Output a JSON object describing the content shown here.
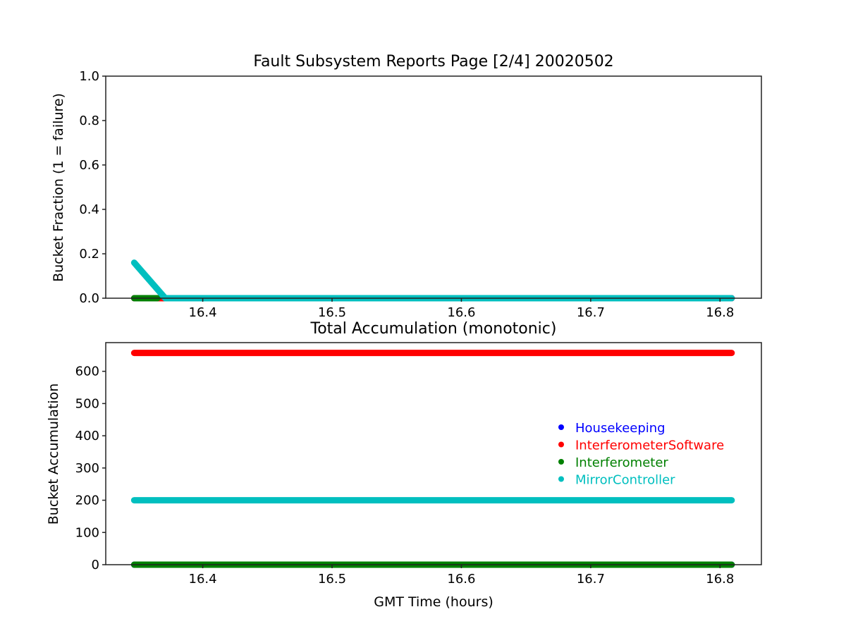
{
  "chart_data": [
    {
      "type": "line",
      "title": "Fault Subsystem Reports Page [2/4] 20020502",
      "xlabel": "",
      "ylabel": "Bucket Fraction (1 = failure)",
      "xlim": [
        16.325,
        16.832
      ],
      "ylim": [
        0,
        1.0
      ],
      "xticks": [
        "16.4",
        "16.5",
        "16.6",
        "16.7",
        "16.8"
      ],
      "yticks": [
        "0.0",
        "0.2",
        "0.4",
        "0.6",
        "0.8",
        "1.0"
      ],
      "grid": false,
      "series": [
        {
          "color": "#0000ff",
          "x": [
            16.347,
            16.809
          ],
          "y": [
            0,
            0
          ]
        },
        {
          "color": "#ff0000",
          "x": [
            16.347,
            16.809
          ],
          "y": [
            0,
            0
          ]
        },
        {
          "color": "#008000",
          "x": [
            16.347,
            16.365
          ],
          "y": [
            0,
            0
          ]
        },
        {
          "color": "#00bfbf",
          "x": [
            16.347,
            16.371,
            16.809
          ],
          "y": [
            0.16,
            0,
            0
          ]
        }
      ]
    },
    {
      "type": "line",
      "title": "Total Accumulation (monotonic)",
      "xlabel": "GMT Time (hours)",
      "ylabel": "Bucket Accumulation",
      "xlim": [
        16.325,
        16.832
      ],
      "ylim": [
        0,
        689
      ],
      "xticks": [
        "16.4",
        "16.5",
        "16.6",
        "16.7",
        "16.8"
      ],
      "yticks": [
        "0",
        "100",
        "200",
        "300",
        "400",
        "500",
        "600"
      ],
      "grid": false,
      "legend_position": "center-right",
      "series": [
        {
          "name": "Housekeeping",
          "color": "#0000ff",
          "x": [
            16.347,
            16.809
          ],
          "y": [
            0,
            0
          ]
        },
        {
          "name": "InterferometerSoftware",
          "color": "#ff0000",
          "x": [
            16.347,
            16.809
          ],
          "y": [
            657,
            657
          ]
        },
        {
          "name": "Interferometer",
          "color": "#008000",
          "x": [
            16.347,
            16.809
          ],
          "y": [
            0,
            0
          ]
        },
        {
          "name": "MirrorController",
          "color": "#00bfbf",
          "x": [
            16.347,
            16.809
          ],
          "y": [
            200,
            200
          ]
        }
      ]
    }
  ]
}
